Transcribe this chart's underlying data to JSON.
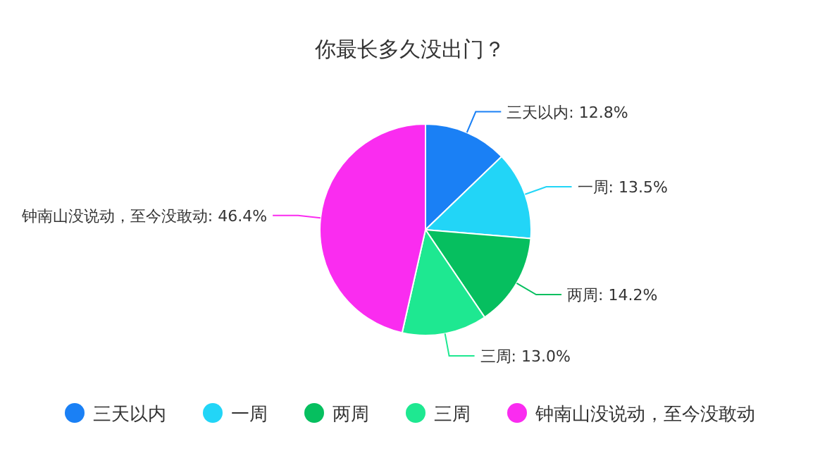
{
  "chart_data": {
    "type": "pie",
    "title": "你最长多久没出门？",
    "categories": [
      "三天以内",
      "一周",
      "两周",
      "三周",
      "钟南山没说动，至今没敢动"
    ],
    "values": [
      12.8,
      13.5,
      14.2,
      13.0,
      46.4
    ],
    "colors": [
      "#1a80f5",
      "#22d5f7",
      "#06bf5f",
      "#1ee891",
      "#fa2cf0"
    ],
    "value_labels": [
      "三天以内: 12.8%",
      "一周: 13.5%",
      "两周: 14.2%",
      "三周: 13.0%",
      "钟南山没说动，至今没敢动: 46.4%"
    ],
    "legend": "bottom"
  }
}
